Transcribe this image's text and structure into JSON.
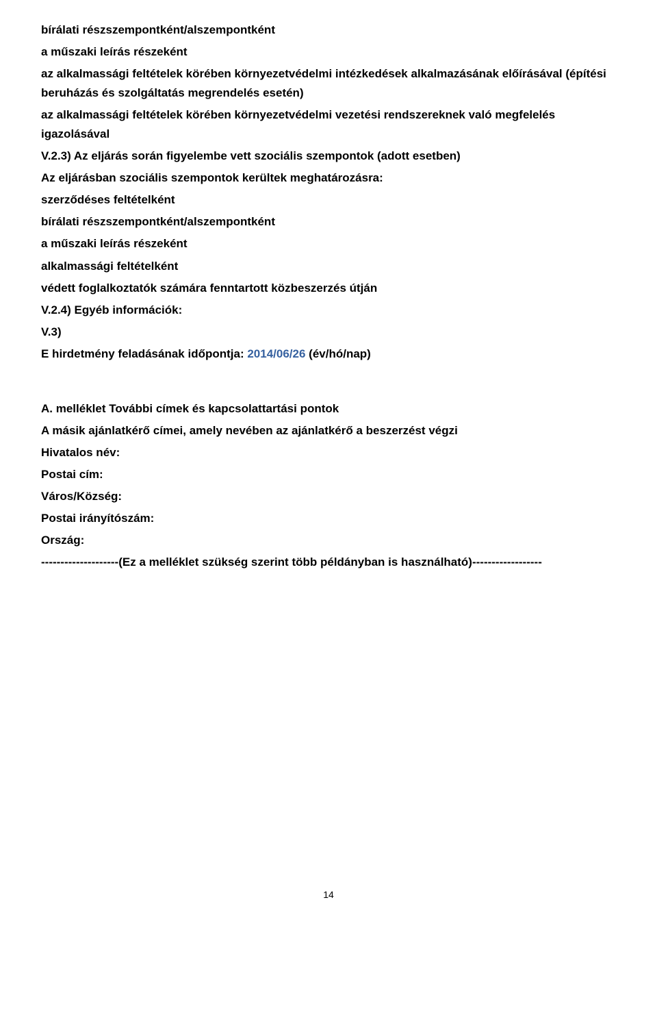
{
  "section1": {
    "l1": "bírálati részszempontként/alszempontként",
    "l2": "a műszaki leírás részeként",
    "l3": "az alkalmassági feltételek körében környezetvédelmi intézkedések alkalmazásának előírásával (építési beruházás és szolgáltatás megrendelés esetén)",
    "l4": "az alkalmassági feltételek körében környezetvédelmi vezetési rendszereknek való megfelelés igazolásával"
  },
  "section2": {
    "heading": "V.2.3) Az eljárás során figyelembe vett szociális szempontok (adott esetben)",
    "l1": "Az eljárásban szociális szempontok kerültek meghatározásra:",
    "l2": "szerződéses feltételként",
    "l3": "bírálati részszempontként/alszempontként",
    "l4": "a műszaki leírás részeként",
    "l5": "alkalmassági feltételként",
    "l6": "védett foglalkoztatók számára fenntartott közbeszerzés útján"
  },
  "section3": {
    "l1": "V.2.4) Egyéb információk:",
    "l2": "V.3)",
    "l3_prefix": "E hirdetmény feladásának időpontja: ",
    "l3_date": "2014/06/26",
    "l3_suffix": " (év/hó/nap)"
  },
  "appendix": {
    "title": "A. melléklet További címek és kapcsolattartási pontok",
    "sub": "A másik ajánlatkérő címei, amely nevében az ajánlatkérő a beszerzést végzi",
    "f1": "Hivatalos név:",
    "f2": "Postai cím:",
    "f3": "Város/Község:",
    "f4": "Postai irányítószám:",
    "f5": "Ország:",
    "note": "--------------------(Ez a melléklet szükség szerint több példányban is használható)------------------"
  },
  "page_number": "14"
}
